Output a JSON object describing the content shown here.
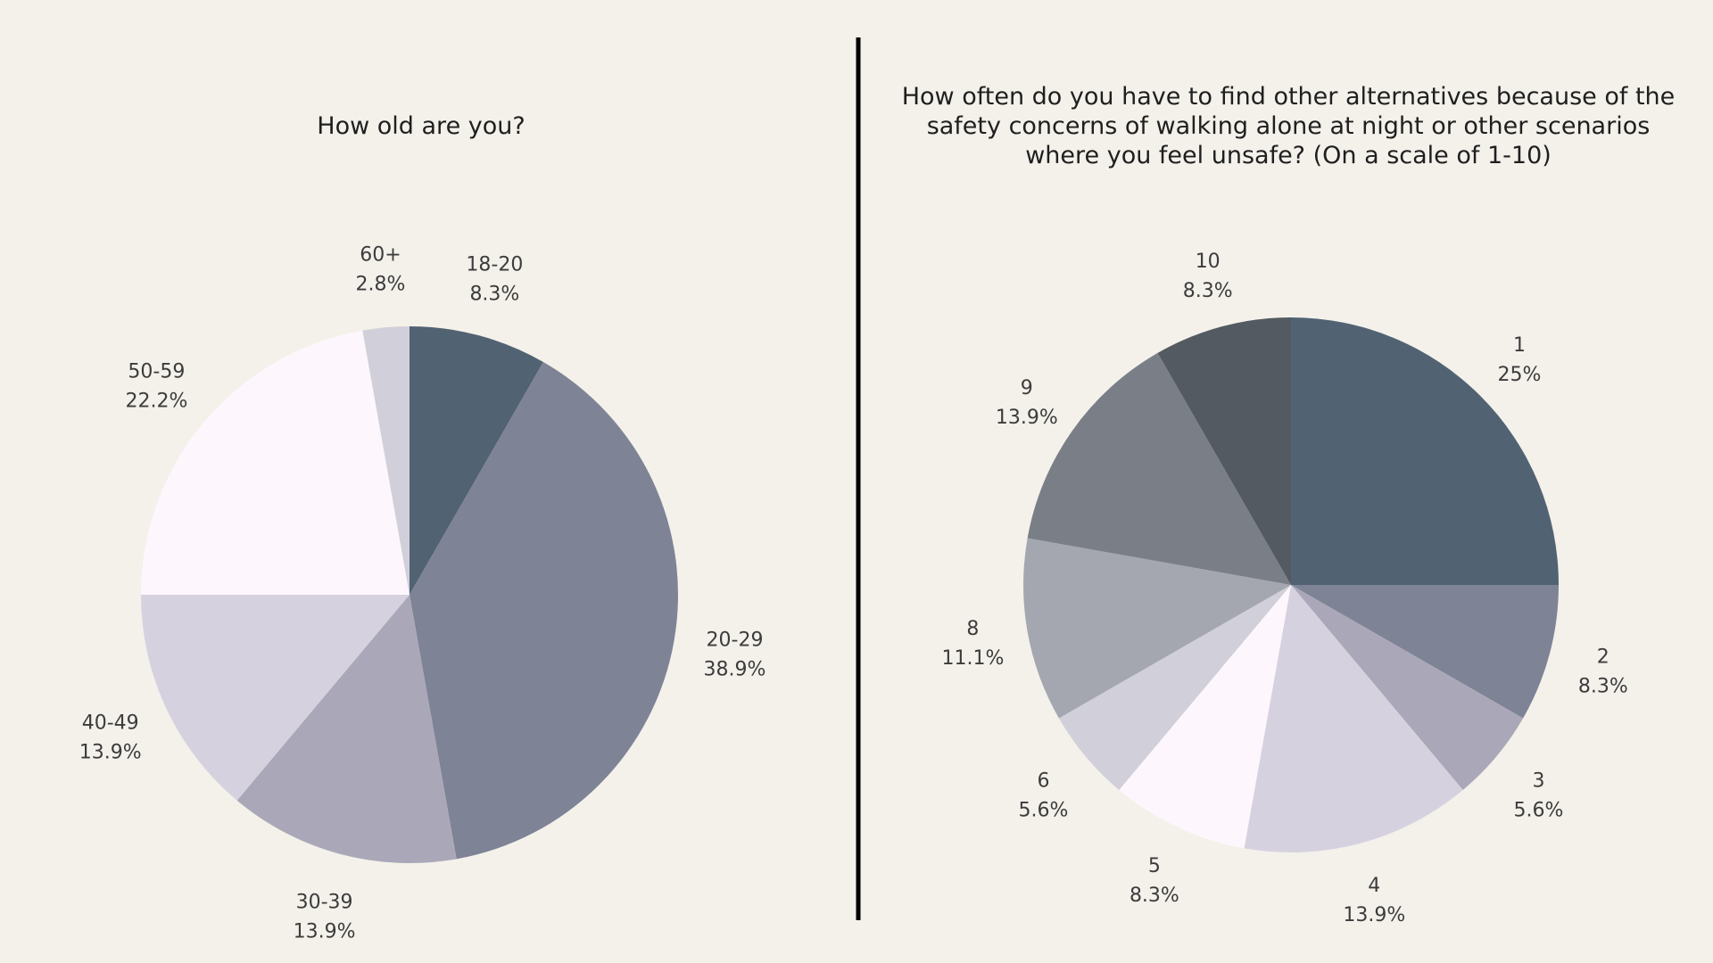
{
  "chart_data": [
    {
      "type": "pie",
      "title": "How old are you?",
      "categories": [
        "18-20",
        "20-29",
        "30-39",
        "40-49",
        "50-59",
        "60+"
      ],
      "values": [
        8.3,
        38.9,
        13.9,
        13.9,
        22.2,
        2.8
      ],
      "value_labels": [
        "8.3%",
        "38.9%",
        "13.9%",
        "13.9%",
        "22.2%",
        "2.8%"
      ],
      "colors": [
        "#516273",
        "#7e8396",
        "#aaa8b8",
        "#d6d1df",
        "#fdf7fd",
        "#d1cfd9"
      ]
    },
    {
      "type": "pie",
      "title": "How often do you have to find other alternatives because of the safety concerns of walking alone at night or other scenarios where you feel unsafe? (On a scale of 1-10)",
      "title_lines": [
        "How often do you have to find other alternatives because of the",
        "safety concerns of walking alone at night or other scenarios",
        "where you feel unsafe? (On a scale of 1-10)"
      ],
      "categories": [
        "1",
        "2",
        "3",
        "4",
        "5",
        "6",
        "8",
        "9",
        "10"
      ],
      "values": [
        25,
        8.3,
        5.6,
        13.9,
        8.3,
        5.6,
        11.1,
        13.9,
        8.3
      ],
      "value_labels": [
        "25%",
        "8.3%",
        "5.6%",
        "13.9%",
        "8.3%",
        "5.6%",
        "11.1%",
        "13.9%",
        "8.3%"
      ],
      "colors": [
        "#516273",
        "#7e8396",
        "#aaa8b8",
        "#d6d1df",
        "#fdf7fd",
        "#d1cfd9",
        "#a4a7b0",
        "#7a7f87",
        "#535a62"
      ]
    }
  ]
}
